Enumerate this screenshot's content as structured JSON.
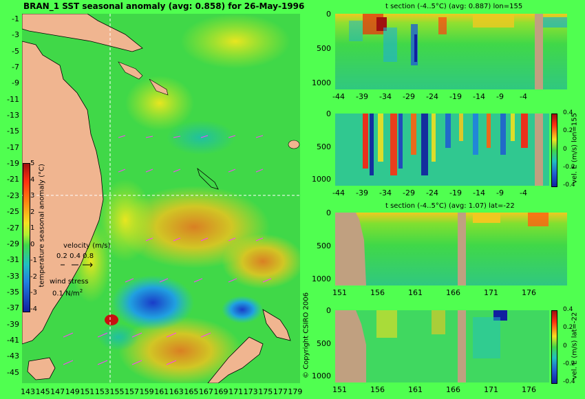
{
  "map": {
    "title": "BRAN_1 SST seasonal anomaly (avg: 0.858) for 26-May-1996",
    "lat_ticks": [
      "-1",
      "-3",
      "-5",
      "-7",
      "-9",
      "-11",
      "-13",
      "-15",
      "-17",
      "-19",
      "-21",
      "-23",
      "-25",
      "-27",
      "-29",
      "-31",
      "-33",
      "-35",
      "-37",
      "-39",
      "-41",
      "-43",
      "-45"
    ],
    "lon_ticks": [
      "143",
      "145",
      "147",
      "149",
      "151",
      "153",
      "155",
      "157",
      "159",
      "161",
      "163",
      "165",
      "167",
      "169",
      "171",
      "173",
      "175",
      "177",
      "179"
    ],
    "colorbar_ticks": [
      "5",
      "4",
      "3",
      "2",
      "1",
      "0",
      "-1",
      "-2",
      "-3",
      "-4"
    ],
    "colorbar_label": "temperature seasonal anomaly (°C)",
    "velocity_label": "velocity (m/s)",
    "velocity_scale": "0.2 0.4 0.8",
    "wind_label": "wind stress",
    "wind_scale": "0.1 N/m",
    "wind_scale_sup": "2",
    "copyright": "© Copyright CSIRO 2006",
    "crosshair": {
      "lon": 155,
      "lat": -22
    },
    "colors": {
      "land": "#f0b590",
      "ocean": "#50e050",
      "arrows": "#ff40ff"
    }
  },
  "panels": [
    {
      "title": "t section (-4..5°C) (avg: 0.887) lon=155",
      "x_ticks": [
        "-44",
        "-39",
        "-34",
        "-29",
        "-24",
        "-19",
        "-14",
        "-9",
        "-4"
      ],
      "y_ticks": [
        "0",
        "500",
        "1000"
      ],
      "side_label": ""
    },
    {
      "title": "",
      "x_ticks": [
        "-44",
        "-39",
        "-34",
        "-29",
        "-24",
        "-19",
        "-14",
        "-9",
        "-4"
      ],
      "y_ticks": [
        "0",
        "500",
        "1000"
      ],
      "side_label": "vel. E (m/s) lon=155",
      "cbar_ticks": [
        "0.4",
        "0.2",
        "0",
        "-0.2",
        "-0.4"
      ]
    },
    {
      "title": "t section (-4..5°C) (avg: 1.07) lat=-22",
      "x_ticks": [
        "151",
        "156",
        "161",
        "166",
        "171",
        "176"
      ],
      "y_ticks": [
        "0",
        "500",
        "1000"
      ],
      "side_label": ""
    },
    {
      "title": "",
      "x_ticks": [
        "151",
        "156",
        "161",
        "166",
        "171",
        "176"
      ],
      "y_ticks": [
        "0",
        "500",
        "1000"
      ],
      "side_label": "vel. E (m/s) lat=-22",
      "cbar_ticks": [
        "0.4",
        "0.2",
        "0",
        "-0.2",
        "-0.4"
      ]
    }
  ]
}
